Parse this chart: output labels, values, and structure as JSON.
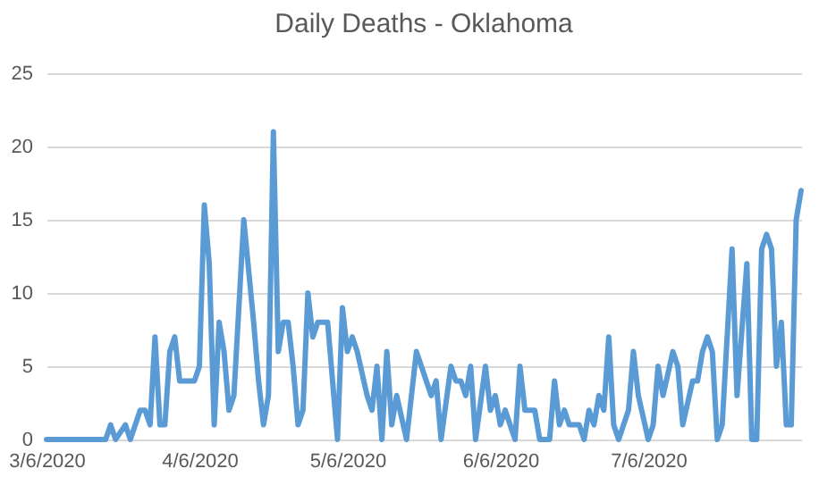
{
  "chart_data": {
    "type": "line",
    "title": "Daily Deaths - Oklahoma",
    "x": [
      "2020-03-06",
      "2020-03-18",
      "2020-03-19",
      "2020-03-20",
      "2020-03-22",
      "2020-03-23",
      "2020-03-25",
      "2020-03-26",
      "2020-03-27",
      "2020-03-28",
      "2020-03-29",
      "2020-03-30",
      "2020-03-31",
      "2020-04-01",
      "2020-04-02",
      "2020-04-05",
      "2020-04-06",
      "2020-04-07",
      "2020-04-08",
      "2020-04-09",
      "2020-04-10",
      "2020-04-11",
      "2020-04-12",
      "2020-04-13",
      "2020-04-15",
      "2020-04-17",
      "2020-04-18",
      "2020-04-19",
      "2020-04-20",
      "2020-04-21",
      "2020-04-22",
      "2020-04-23",
      "2020-04-24",
      "2020-04-25",
      "2020-04-26",
      "2020-04-27",
      "2020-04-28",
      "2020-04-29",
      "2020-04-30",
      "2020-05-02",
      "2020-05-04",
      "2020-05-05",
      "2020-05-06",
      "2020-05-07",
      "2020-05-08",
      "2020-05-10",
      "2020-05-11",
      "2020-05-12",
      "2020-05-13",
      "2020-05-14",
      "2020-05-15",
      "2020-05-16",
      "2020-05-18",
      "2020-05-20",
      "2020-05-21",
      "2020-05-23",
      "2020-05-24",
      "2020-05-25",
      "2020-05-27",
      "2020-05-28",
      "2020-05-29",
      "2020-05-30",
      "2020-05-31",
      "2020-06-01",
      "2020-06-03",
      "2020-06-04",
      "2020-06-05",
      "2020-06-06",
      "2020-06-07",
      "2020-06-09",
      "2020-06-10",
      "2020-06-11",
      "2020-06-13",
      "2020-06-14",
      "2020-06-16",
      "2020-06-17",
      "2020-06-18",
      "2020-06-19",
      "2020-06-20",
      "2020-06-22",
      "2020-06-23",
      "2020-06-24",
      "2020-06-25",
      "2020-06-26",
      "2020-06-27",
      "2020-06-28",
      "2020-06-29",
      "2020-06-30",
      "2020-07-02",
      "2020-07-03",
      "2020-07-04",
      "2020-07-06",
      "2020-07-07",
      "2020-07-08",
      "2020-07-09",
      "2020-07-11",
      "2020-07-12",
      "2020-07-13",
      "2020-07-15",
      "2020-07-16",
      "2020-07-17",
      "2020-07-18",
      "2020-07-19",
      "2020-07-20",
      "2020-07-21",
      "2020-07-23",
      "2020-07-24",
      "2020-07-26",
      "2020-07-27",
      "2020-07-28",
      "2020-07-29",
      "2020-07-30",
      "2020-07-31",
      "2020-08-01",
      "2020-08-02",
      "2020-08-03",
      "2020-08-04",
      "2020-08-05",
      "2020-08-06"
    ],
    "series": [
      {
        "color": "#5b9bd5",
        "values": [
          0,
          0,
          1,
          0,
          1,
          0,
          2,
          2,
          1,
          7,
          1,
          1,
          6,
          7,
          4,
          4,
          5,
          16,
          12,
          1,
          8,
          6,
          2,
          3,
          15,
          8,
          4,
          1,
          3,
          21,
          6,
          8,
          8,
          5,
          1,
          2,
          10,
          7,
          8,
          8,
          0,
          9,
          6,
          7,
          6,
          3,
          2,
          5,
          0,
          6,
          1,
          3,
          0,
          6,
          5,
          3,
          4,
          0,
          5,
          4,
          4,
          3,
          5,
          0,
          5,
          2,
          3,
          1,
          2,
          0,
          5,
          2,
          2,
          0,
          0,
          4,
          1,
          2,
          1,
          1,
          0,
          2,
          1,
          3,
          2,
          7,
          1,
          0,
          2,
          6,
          3,
          0,
          1,
          5,
          3,
          6,
          5,
          1,
          4,
          4,
          6,
          7,
          6,
          0,
          1,
          13,
          3,
          12,
          0,
          0,
          13,
          14,
          13,
          5,
          8,
          1,
          1,
          15,
          17
        ]
      }
    ],
    "xlim": [
      "2020-03-06",
      "2020-08-06"
    ],
    "xticks": [
      {
        "value": "2020-03-06",
        "label": "3/6/2020"
      },
      {
        "value": "2020-04-06",
        "label": "4/6/2020"
      },
      {
        "value": "2020-05-06",
        "label": "5/6/2020"
      },
      {
        "value": "2020-06-06",
        "label": "6/6/2020"
      },
      {
        "value": "2020-07-06",
        "label": "7/6/2020"
      }
    ],
    "ylim": [
      0,
      25
    ],
    "yticks": [
      0,
      5,
      10,
      15,
      20,
      25
    ],
    "grid": "y",
    "marker": "none",
    "line_style": "solid"
  }
}
